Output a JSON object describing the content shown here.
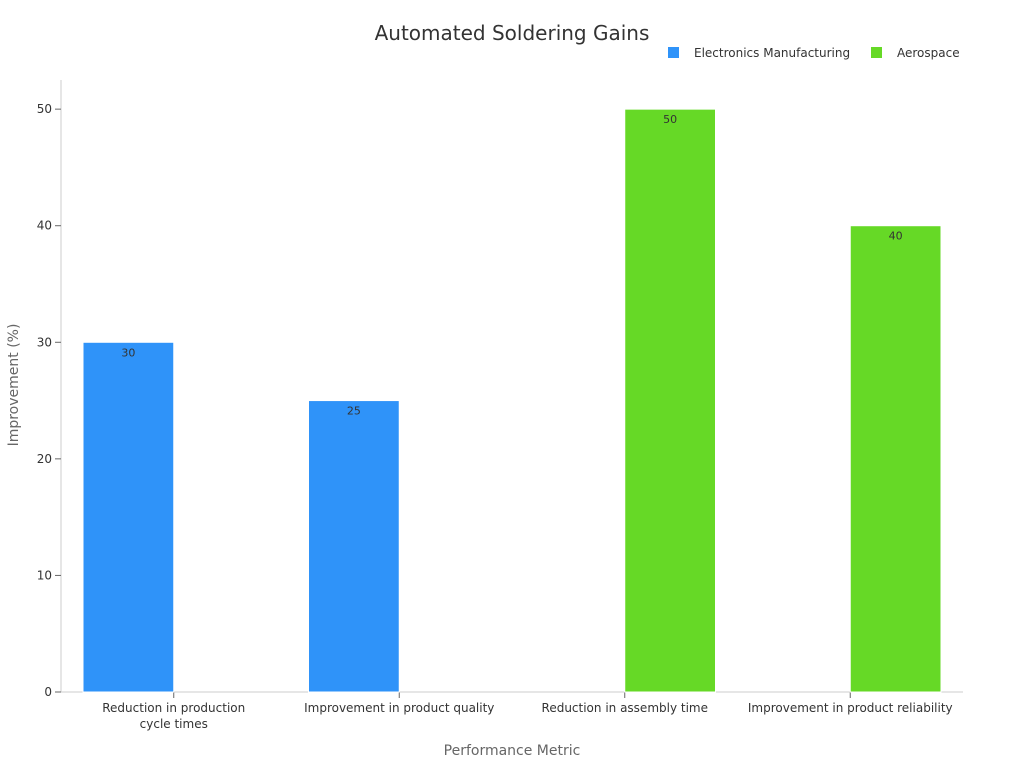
{
  "chart_data": {
    "type": "bar",
    "title": "Automated Soldering Gains",
    "xlabel": "Performance Metric",
    "ylabel": "Improvement (%)",
    "ylim": [
      0,
      52.5
    ],
    "yticks": [
      0,
      10,
      20,
      30,
      40,
      50
    ],
    "grid": false,
    "legend_position": "top-right",
    "categories": [
      [
        "Reduction in production",
        "cycle times"
      ],
      [
        "Improvement in product quality"
      ],
      [
        "Reduction in assembly time"
      ],
      [
        "Improvement in product reliability"
      ]
    ],
    "series": [
      {
        "name": "Electronics Manufacturing",
        "color": "#2f93f9",
        "values": [
          30,
          25,
          null,
          null
        ]
      },
      {
        "name": "Aerospace",
        "color": "#66d926",
        "values": [
          null,
          null,
          50,
          40
        ]
      }
    ]
  }
}
